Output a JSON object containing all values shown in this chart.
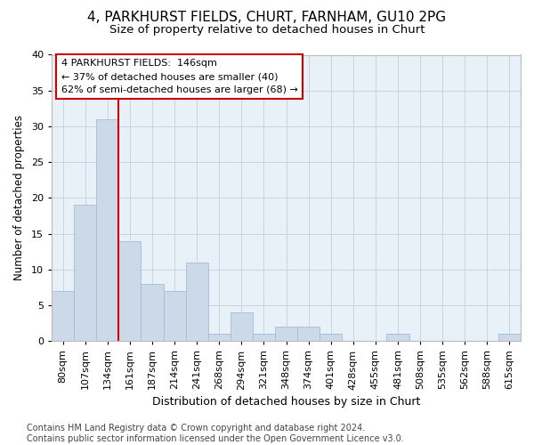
{
  "title1": "4, PARKHURST FIELDS, CHURT, FARNHAM, GU10 2PG",
  "title2": "Size of property relative to detached houses in Churt",
  "xlabel": "Distribution of detached houses by size in Churt",
  "ylabel": "Number of detached properties",
  "categories": [
    "80sqm",
    "107sqm",
    "134sqm",
    "161sqm",
    "187sqm",
    "214sqm",
    "241sqm",
    "268sqm",
    "294sqm",
    "321sqm",
    "348sqm",
    "374sqm",
    "401sqm",
    "428sqm",
    "455sqm",
    "481sqm",
    "508sqm",
    "535sqm",
    "562sqm",
    "588sqm",
    "615sqm"
  ],
  "values": [
    7,
    19,
    31,
    14,
    8,
    7,
    11,
    1,
    4,
    1,
    2,
    2,
    1,
    0,
    0,
    1,
    0,
    0,
    0,
    0,
    1
  ],
  "bar_color": "#ccd9e8",
  "bar_edge_color": "#aabbd0",
  "bar_linewidth": 0.6,
  "redline_x": 3.0,
  "redline_label": "4 PARKHURST FIELDS:  146sqm",
  "annotation_line1": "← 37% of detached houses are smaller (40)",
  "annotation_line2": "62% of semi-detached houses are larger (68) →",
  "annotation_box_facecolor": "#ffffff",
  "annotation_box_edgecolor": "#cc0000",
  "annotation_text_color": "#000000",
  "redline_color": "#cc0000",
  "ylim": [
    0,
    40
  ],
  "yticks": [
    0,
    5,
    10,
    15,
    20,
    25,
    30,
    35,
    40
  ],
  "grid_color": "#c8d4e0",
  "background_color": "#e8f0f8",
  "footer1": "Contains HM Land Registry data © Crown copyright and database right 2024.",
  "footer2": "Contains public sector information licensed under the Open Government Licence v3.0.",
  "title1_fontsize": 11,
  "title2_fontsize": 9.5,
  "xlabel_fontsize": 9,
  "ylabel_fontsize": 8.5,
  "tick_fontsize": 8,
  "annotation_fontsize": 8,
  "footer_fontsize": 7
}
